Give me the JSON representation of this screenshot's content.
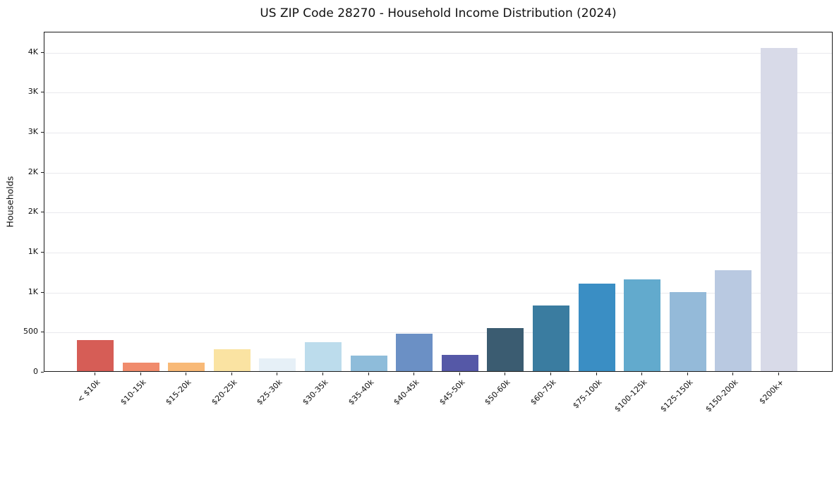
{
  "chart_data": {
    "type": "bar",
    "title": "US ZIP Code 28270 - Household Income Distribution (2024)",
    "xlabel": "",
    "ylabel": "Households",
    "categories": [
      "< $10k",
      "$10-15k",
      "$15-20k",
      "$20-25k",
      "$25-30k",
      "$30-35k",
      "$35-40k",
      "$40-45k",
      "$45-50k",
      "$50-60k",
      "$60-75k",
      "$75-100k",
      "$100-125k",
      "$125-150k",
      "$150-200k",
      "$200k+"
    ],
    "values": [
      390,
      110,
      110,
      270,
      155,
      360,
      195,
      465,
      205,
      535,
      825,
      1090,
      1145,
      985,
      1265,
      4045
    ],
    "bar_colors": [
      "#d65d56",
      "#f08b6c",
      "#f8b977",
      "#fae3a2",
      "#e6f0f7",
      "#bcdcec",
      "#8ebcda",
      "#6b90c5",
      "#5558a7",
      "#3b5c71",
      "#3a7ca0",
      "#3a8ec4",
      "#62aacd",
      "#94bad9",
      "#b9c9e1",
      "#d8dae8"
    ],
    "ylim": [
      0,
      4252
    ],
    "yticks": {
      "values": [
        0,
        500,
        1000,
        1500,
        2000,
        2500,
        3000,
        3500,
        4000
      ],
      "labels": [
        "0",
        "500",
        "1K",
        "1K",
        "2K",
        "2K",
        "3K",
        "3K",
        "4K"
      ]
    },
    "grid": "horizontal-only",
    "gridline_color": "#e9e9ed",
    "axis_color": "#1a1a1a",
    "background_color": "#ffffff",
    "x_tick_rotation_deg": 45,
    "legend": "none"
  }
}
